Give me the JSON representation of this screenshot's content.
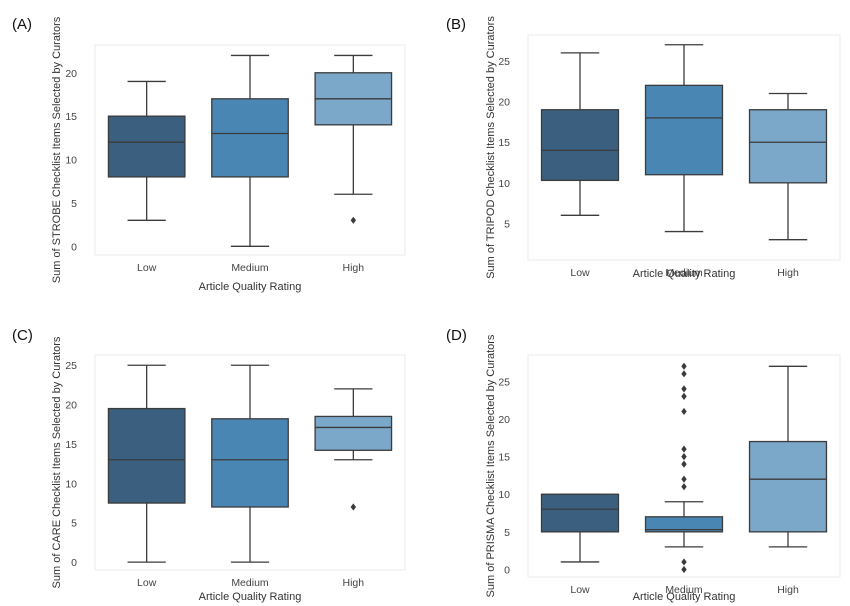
{
  "colors": {
    "low": "#3a5f7f",
    "medium": "#4a86b3",
    "high": "#7ba7c9",
    "outline": "#3b3b3b",
    "plot_bg": "#ffffff",
    "plot_edge": "#ebebeb"
  },
  "chart_data": [
    {
      "type": "box",
      "panel_label": "(A)",
      "categories": [
        "Low",
        "Medium",
        "High"
      ],
      "xlabel": "Article Quality Rating",
      "ylabel": "Sum of STROBE Checklist Items Selected by Curators",
      "yticks": [
        0,
        5,
        10,
        15,
        20
      ],
      "ylim": [
        -1,
        23.2
      ],
      "boxes": [
        {
          "category": "Low",
          "whisker_low": 3,
          "q1": 8,
          "median": 12,
          "q3": 15,
          "whisker_high": 19,
          "outliers": []
        },
        {
          "category": "Medium",
          "whisker_low": 0,
          "q1": 8,
          "median": 13,
          "q3": 17,
          "whisker_high": 22,
          "outliers": []
        },
        {
          "category": "High",
          "whisker_low": 6,
          "q1": 14,
          "median": 17,
          "q3": 20,
          "whisker_high": 22,
          "outliers": [
            3
          ]
        }
      ]
    },
    {
      "type": "box",
      "panel_label": "(B)",
      "categories": [
        "Low",
        "Medium",
        "High"
      ],
      "xlabel": "Article Quality Rating",
      "ylabel": "Sum of TRIPOD Checklist Items Selected by Curators",
      "yticks": [
        5,
        10,
        15,
        20,
        25
      ],
      "ylim": [
        0.5,
        28.2
      ],
      "boxes": [
        {
          "category": "Low",
          "whisker_low": 6,
          "q1": 10.3,
          "median": 14,
          "q3": 19,
          "whisker_high": 26,
          "outliers": []
        },
        {
          "category": "Medium",
          "whisker_low": 4,
          "q1": 11,
          "median": 18,
          "q3": 22,
          "whisker_high": 27,
          "outliers": []
        },
        {
          "category": "High",
          "whisker_low": 3,
          "q1": 10,
          "median": 15,
          "q3": 19,
          "whisker_high": 21,
          "outliers": []
        }
      ]
    },
    {
      "type": "box",
      "panel_label": "(C)",
      "categories": [
        "Low",
        "Medium",
        "High"
      ],
      "xlabel": "Article Quality Rating",
      "ylabel": "Sum of CARE Checklist Items Selected by Curators",
      "yticks": [
        0,
        5,
        10,
        15,
        20,
        25
      ],
      "ylim": [
        -1,
        26.3
      ],
      "boxes": [
        {
          "category": "Low",
          "whisker_low": 0,
          "q1": 7.5,
          "median": 13,
          "q3": 19.5,
          "whisker_high": 25,
          "outliers": []
        },
        {
          "category": "Medium",
          "whisker_low": 0,
          "q1": 7,
          "median": 13,
          "q3": 18.2,
          "whisker_high": 25,
          "outliers": []
        },
        {
          "category": "High",
          "whisker_low": 13,
          "q1": 14.2,
          "median": 17.1,
          "q3": 18.5,
          "whisker_high": 22,
          "outliers": [
            7
          ]
        }
      ]
    },
    {
      "type": "box",
      "panel_label": "(D)",
      "categories": [
        "Low",
        "Medium",
        "High"
      ],
      "xlabel": "Article Quality Rating",
      "ylabel": "Sum of PRISMA Checklist Items Selected by Curators",
      "yticks": [
        0,
        5,
        10,
        15,
        20,
        25
      ],
      "ylim": [
        -1,
        28.5
      ],
      "boxes": [
        {
          "category": "Low",
          "whisker_low": 1,
          "q1": 5,
          "median": 8,
          "q3": 10,
          "whisker_high": 10,
          "outliers": []
        },
        {
          "category": "Medium",
          "whisker_low": 3,
          "q1": 5,
          "median": 5.3,
          "q3": 7,
          "whisker_high": 9,
          "outliers": [
            0,
            1,
            11,
            12,
            14,
            15,
            16,
            21,
            23,
            24,
            26,
            27
          ]
        },
        {
          "category": "High",
          "whisker_low": 3,
          "q1": 5,
          "median": 12,
          "q3": 17,
          "whisker_high": 27,
          "outliers": []
        }
      ]
    }
  ]
}
